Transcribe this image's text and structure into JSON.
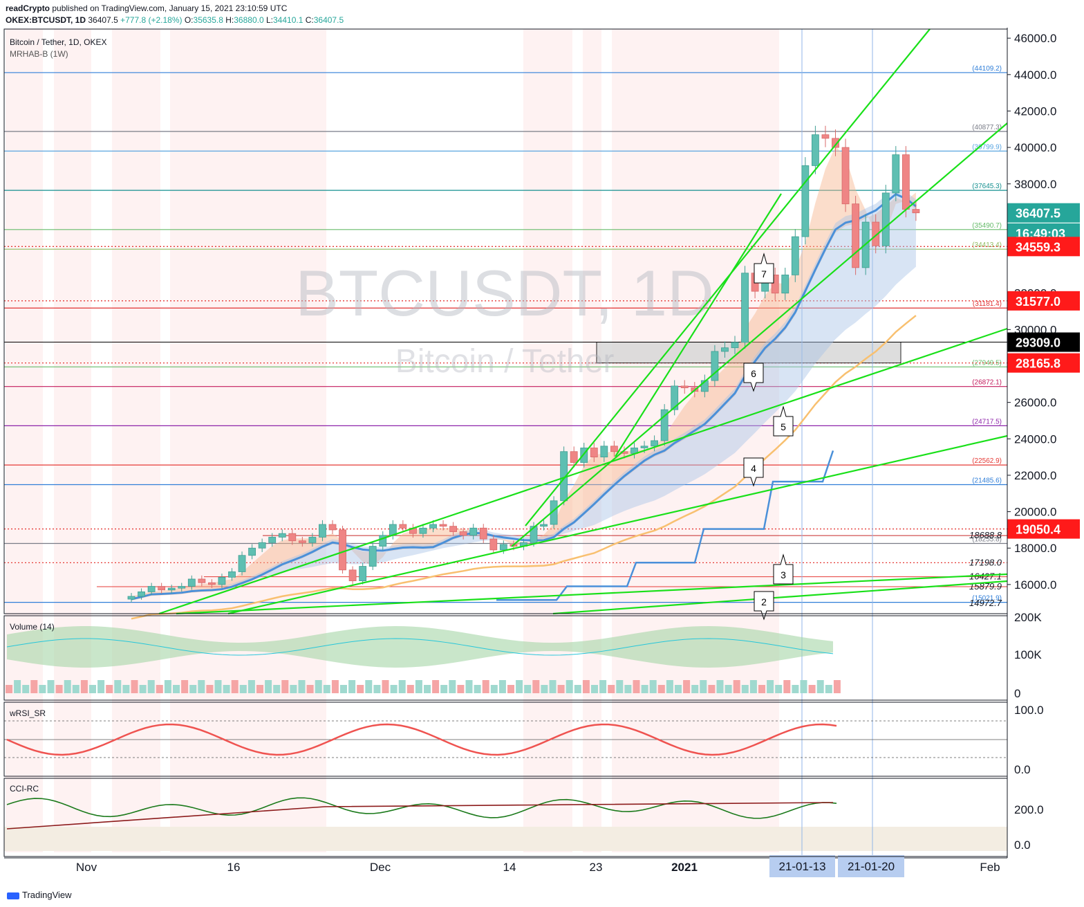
{
  "header": {
    "author": "readCrypto",
    "published": "published on TradingView.com, January 15, 2021 23:10:59 UTC",
    "symbol_line": "OKEX:BTCUSDT, 1D",
    "last": "36407.5",
    "change": "+777.8 (+2.18%)",
    "o_label": "O:",
    "open": "35635.8",
    "h_label": "H:",
    "high": "36880.0",
    "l_label": "L:",
    "low": "34410.1",
    "c_label": "C:",
    "close": "36407.5"
  },
  "pane_legend": {
    "main_title": "Bitcoin / Tether, 1D, OKEX",
    "main_indicator": "MRHAB-B (1W)",
    "volume": "Volume (14)",
    "wrsi": "wRSI_SR",
    "cci": "CCI-RC"
  },
  "watermark": {
    "symbol": "BTCUSDT, 1D",
    "name": "Bitcoin / Tether"
  },
  "footer": {
    "brand": "TradingView"
  },
  "colors": {
    "up": "#5fbfb2",
    "down": "#ef8585",
    "green_line": "#19e019",
    "blue_line": "#4a90d9",
    "orange_ma": "#f8c070",
    "price_badge": "#26a69a",
    "red_badge": "#ff1a1a"
  },
  "chart_data": [
    {
      "type": "candlestick",
      "title": "Bitcoin / Tether, 1D, OKEX",
      "ylim": [
        14400,
        46500
      ],
      "y_ticks": [
        "16000.0",
        "18000.0",
        "20000.0",
        "22000.0",
        "24000.0",
        "26000.0",
        "28000.0",
        "30000.0",
        "32000.0",
        "38000.0",
        "40000.0",
        "42000.0",
        "44000.0",
        "46000.0"
      ],
      "x_ticks": [
        "Nov",
        "16",
        "Dec",
        "14",
        "23",
        "2021",
        "Feb"
      ],
      "x_highlight": [
        "21-01-13",
        "21-01-20"
      ],
      "close_series": [
        15350,
        15600,
        15900,
        15700,
        15800,
        15900,
        16300,
        16100,
        16000,
        16400,
        16700,
        17600,
        18000,
        18300,
        18600,
        18800,
        18400,
        18300,
        18600,
        19300,
        19000,
        16800,
        16200,
        17000,
        18100,
        18700,
        19300,
        19100,
        18800,
        19100,
        19300,
        19200,
        18900,
        18700,
        19100,
        18500,
        17900,
        18200,
        18100,
        18300,
        19200,
        19300,
        20600,
        23300,
        22700,
        23500,
        23000,
        23600,
        23300,
        23200,
        23500,
        23600,
        23900,
        25600,
        26900,
        26800,
        26600,
        27200,
        28800,
        29000,
        29300,
        33100,
        32100,
        33000,
        32000,
        33000,
        35100,
        39000,
        40700,
        40500,
        40000,
        36900,
        33400,
        35900,
        34600,
        37500,
        39600,
        36600,
        36407
      ],
      "horizontal_levels": [
        {
          "label": "(44109.2)",
          "value": 44109.2,
          "color": "#2f7ed8"
        },
        {
          "label": "(40877.3)",
          "value": 40877.3,
          "color": "#787b86"
        },
        {
          "label": "(39799.9)",
          "value": 39799.9,
          "color": "#5aa5e0"
        },
        {
          "label": "(37645.3)",
          "value": 37645.3,
          "color": "#138f8f"
        },
        {
          "label": "(35490.7)",
          "value": 35490.7,
          "color": "#66bb6a"
        },
        {
          "label": "(34413.4)",
          "value": 34413.4,
          "color": "#8fbc5f"
        },
        {
          "label": "(31181.4)",
          "value": 31181.4,
          "color": "#e03030"
        },
        {
          "label": "(27949.5)",
          "value": 27949.5,
          "color": "#66bb6a"
        },
        {
          "label": "(26872.1)",
          "value": 26872.1,
          "color": "#c2185b"
        },
        {
          "label": "(24717.5)",
          "value": 24717.5,
          "color": "#8e24aa"
        },
        {
          "label": "(22562.9)",
          "value": 22562.9,
          "color": "#e53935"
        },
        {
          "label": "(21485.6)",
          "value": 21485.6,
          "color": "#2f7ed8"
        },
        {
          "label": "(18255.8)",
          "value": 18255.8,
          "color": "#787b86"
        },
        {
          "label": "(15021.9)",
          "value": 15021.9,
          "color": "#2f7ed8"
        }
      ],
      "price_labels": [
        {
          "label": "18688.8",
          "value": 18688.8
        },
        {
          "label": "17198.0",
          "value": 17198.0
        },
        {
          "label": "16427.1",
          "value": 16427.1
        },
        {
          "label": "15879.9",
          "value": 15879.9
        },
        {
          "label": "14972.7",
          "value": 14972.7
        }
      ],
      "badges": [
        {
          "label": "36407.5",
          "value": 36407.5,
          "color": "#26a69a"
        },
        {
          "label": "16:49:03",
          "value": 35300,
          "color": "#26a69a"
        },
        {
          "label": "34559.3",
          "value": 34559.3,
          "color": "#ff1a1a"
        },
        {
          "label": "31577.0",
          "value": 31577.0,
          "color": "#ff1a1a"
        },
        {
          "label": "29309.0",
          "value": 29309.0,
          "color": "#000000"
        },
        {
          "label": "28165.8",
          "value": 28165.8,
          "color": "#ff1a1a"
        },
        {
          "label": "19050.4",
          "value": 19050.4,
          "color": "#ff1a1a"
        }
      ],
      "callouts": [
        "2",
        "3",
        "4",
        "5",
        "6",
        "7"
      ]
    },
    {
      "type": "area",
      "title": "Volume (14)",
      "y_ticks": [
        "200K",
        "100K",
        "0"
      ]
    },
    {
      "type": "line",
      "title": "wRSI_SR",
      "y_ticks": [
        "100.0",
        "0.0"
      ]
    },
    {
      "type": "line",
      "title": "CCI-RC",
      "y_ticks": [
        "200.0",
        "0.0"
      ]
    }
  ]
}
